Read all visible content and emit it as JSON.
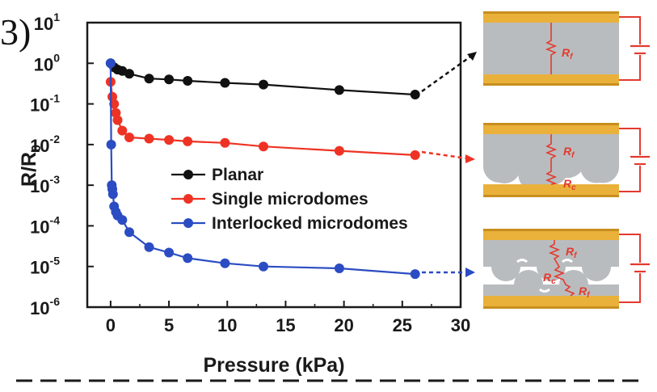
{
  "panel_label": "3)",
  "chart_data": {
    "type": "line",
    "title": "",
    "xlabel": "Pressure (kPa)",
    "ylabel": "R/R",
    "ylabel_subscript": "0",
    "xlim": [
      -2,
      30
    ],
    "ylim_exponent": [
      -6,
      1
    ],
    "yscale": "log",
    "x_ticks": [
      "0",
      "5",
      "10",
      "15",
      "20",
      "25",
      "30"
    ],
    "y_tick_base": "10",
    "y_tick_exponents": [
      "1",
      "0",
      "-1",
      "-2",
      "-3",
      "-4",
      "-5",
      "-6"
    ],
    "legend_position": "center",
    "series": [
      {
        "name": "Planar",
        "color": "#111111",
        "x": [
          0,
          0.3,
          0.6,
          1.0,
          1.6,
          3.3,
          5.0,
          6.6,
          9.8,
          13.1,
          19.6,
          26.1
        ],
        "y": [
          1.0,
          0.8,
          0.7,
          0.65,
          0.55,
          0.42,
          0.4,
          0.37,
          0.33,
          0.3,
          0.22,
          0.17
        ]
      },
      {
        "name": "Single microdomes",
        "color": "#ee3324",
        "x": [
          0,
          0.15,
          0.3,
          0.45,
          0.6,
          1.0,
          1.6,
          3.3,
          5.0,
          6.6,
          9.8,
          13.1,
          19.6,
          26.1
        ],
        "y": [
          0.35,
          0.15,
          0.1,
          0.06,
          0.04,
          0.022,
          0.015,
          0.014,
          0.013,
          0.012,
          0.011,
          0.009,
          0.007,
          0.0055
        ]
      },
      {
        "name": "Interlocked microdomes",
        "color": "#2b4cc2",
        "x": [
          0,
          0.05,
          0.1,
          0.15,
          0.2,
          0.3,
          0.45,
          0.6,
          1.0,
          1.6,
          3.3,
          5.0,
          6.6,
          9.8,
          13.1,
          19.6,
          26.1
        ],
        "y": [
          1.0,
          0.01,
          0.001,
          0.0008,
          0.0006,
          0.0003,
          0.00022,
          0.00018,
          0.00014,
          7e-05,
          3e-05,
          2.2e-05,
          1.6e-05,
          1.2e-05,
          1e-05,
          9e-06,
          6.5e-06
        ]
      }
    ]
  },
  "schematics": [
    {
      "name": "planar-schematic",
      "labels": [
        {
          "text": "R",
          "sub": "f"
        }
      ]
    },
    {
      "name": "single-schematic",
      "labels": [
        {
          "text": "R",
          "sub": "f"
        },
        {
          "text": "R",
          "sub": "c"
        }
      ]
    },
    {
      "name": "interlocked-schematic",
      "labels": [
        {
          "text": "R",
          "sub": "f"
        },
        {
          "text": "R",
          "sub": "c"
        },
        {
          "text": "R",
          "sub": "f"
        }
      ]
    }
  ],
  "colors": {
    "electrode": "#e9b13a",
    "electrode_dark": "#c88e1e",
    "film": "#b9bcbf",
    "circuit": "#e23a2f"
  }
}
